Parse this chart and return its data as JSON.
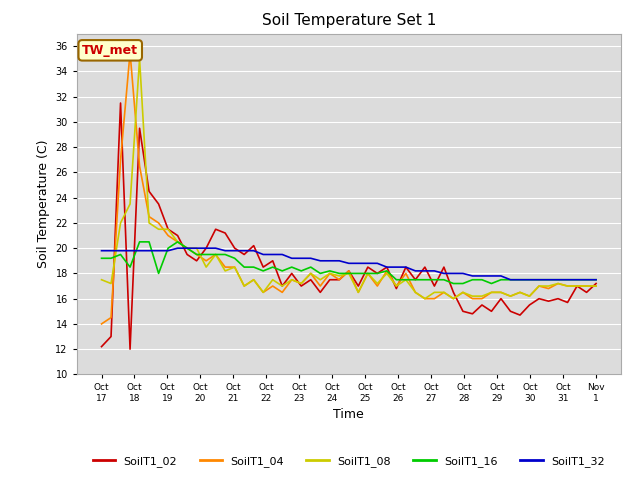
{
  "title": "Soil Temperature Set 1",
  "xlabel": "Time",
  "ylabel": "Soil Temperature (C)",
  "ylim": [
    10,
    37
  ],
  "yticks": [
    10,
    12,
    14,
    16,
    18,
    20,
    22,
    24,
    26,
    28,
    30,
    32,
    34,
    36
  ],
  "bg_color": "#dcdcdc",
  "annotation_text": "TW_met",
  "annotation_bg": "#ffffcc",
  "annotation_border": "#996600",
  "series_colors": {
    "SoilT1_02": "#cc0000",
    "SoilT1_04": "#ff8800",
    "SoilT1_08": "#cccc00",
    "SoilT1_16": "#00cc00",
    "SoilT1_32": "#0000cc"
  },
  "x_tick_labels": [
    "Oct 17",
    "Oct 18",
    "Oct 19",
    "Oct 20",
    "Oct 21",
    "Oct 22",
    "Oct 23",
    "Oct 24",
    "Oct 25",
    "Oct 26",
    "Oct 27",
    "Oct 28",
    "Oct 29",
    "Oct 30",
    "Oct 31",
    "Nov 1"
  ],
  "SoilT1_02": [
    12.2,
    13.0,
    31.5,
    12.0,
    29.5,
    24.5,
    23.5,
    21.5,
    21.0,
    19.5,
    19.0,
    20.0,
    21.5,
    21.2,
    20.0,
    19.5,
    20.2,
    18.5,
    19.0,
    17.0,
    18.0,
    17.0,
    17.5,
    16.5,
    17.5,
    17.5,
    18.2,
    17.0,
    18.5,
    18.0,
    18.5,
    16.8,
    18.5,
    17.5,
    18.5,
    17.0,
    18.5,
    16.5,
    15.0,
    14.8,
    15.5,
    15.0,
    16.0,
    15.0,
    14.7,
    15.5,
    16.0,
    15.8,
    16.0,
    15.7,
    17.0,
    16.5,
    17.2
  ],
  "SoilT1_04": [
    14.0,
    14.5,
    27.0,
    35.5,
    26.5,
    22.5,
    22.0,
    21.0,
    20.5,
    20.0,
    19.5,
    19.0,
    19.5,
    18.5,
    18.5,
    17.0,
    17.5,
    16.5,
    17.0,
    16.5,
    17.5,
    17.2,
    18.0,
    17.0,
    18.0,
    17.5,
    18.2,
    16.5,
    18.0,
    17.0,
    18.2,
    17.0,
    18.0,
    16.5,
    16.0,
    16.0,
    16.5,
    16.0,
    16.5,
    16.0,
    16.0,
    16.5,
    16.5,
    16.2,
    16.5,
    16.2,
    17.0,
    16.8,
    17.2,
    17.0,
    17.0,
    17.0,
    17.0
  ],
  "SoilT1_08": [
    17.5,
    17.2,
    22.0,
    23.5,
    35.0,
    22.0,
    21.5,
    21.5,
    20.5,
    20.0,
    20.0,
    18.5,
    19.5,
    18.2,
    18.5,
    17.0,
    17.5,
    16.5,
    17.5,
    17.0,
    17.5,
    17.2,
    18.0,
    17.5,
    18.0,
    17.8,
    18.0,
    16.5,
    18.0,
    17.2,
    18.0,
    17.0,
    17.5,
    16.5,
    16.0,
    16.5,
    16.5,
    16.0,
    16.5,
    16.2,
    16.2,
    16.5,
    16.5,
    16.2,
    16.5,
    16.2,
    17.0,
    17.0,
    17.2,
    17.0,
    17.0,
    17.0,
    17.0
  ],
  "SoilT1_16": [
    19.2,
    19.2,
    19.5,
    18.5,
    20.5,
    20.5,
    18.0,
    20.0,
    20.5,
    20.0,
    19.5,
    19.5,
    19.5,
    19.5,
    19.2,
    18.5,
    18.5,
    18.2,
    18.5,
    18.2,
    18.5,
    18.2,
    18.5,
    18.0,
    18.2,
    18.0,
    18.0,
    18.0,
    18.0,
    18.0,
    18.2,
    17.5,
    17.5,
    17.5,
    17.5,
    17.5,
    17.5,
    17.2,
    17.2,
    17.5,
    17.5,
    17.2,
    17.5,
    17.5,
    17.5,
    17.5,
    17.5,
    17.5,
    17.5,
    17.5,
    17.5,
    17.5,
    17.5
  ],
  "SoilT1_32": [
    19.8,
    19.8,
    19.8,
    19.8,
    19.8,
    19.8,
    19.8,
    19.8,
    20.0,
    20.0,
    20.0,
    20.0,
    20.0,
    19.8,
    19.8,
    19.8,
    19.8,
    19.5,
    19.5,
    19.5,
    19.2,
    19.2,
    19.2,
    19.0,
    19.0,
    19.0,
    18.8,
    18.8,
    18.8,
    18.8,
    18.5,
    18.5,
    18.5,
    18.2,
    18.2,
    18.2,
    18.0,
    18.0,
    18.0,
    17.8,
    17.8,
    17.8,
    17.8,
    17.5,
    17.5,
    17.5,
    17.5,
    17.5,
    17.5,
    17.5,
    17.5,
    17.5,
    17.5
  ]
}
